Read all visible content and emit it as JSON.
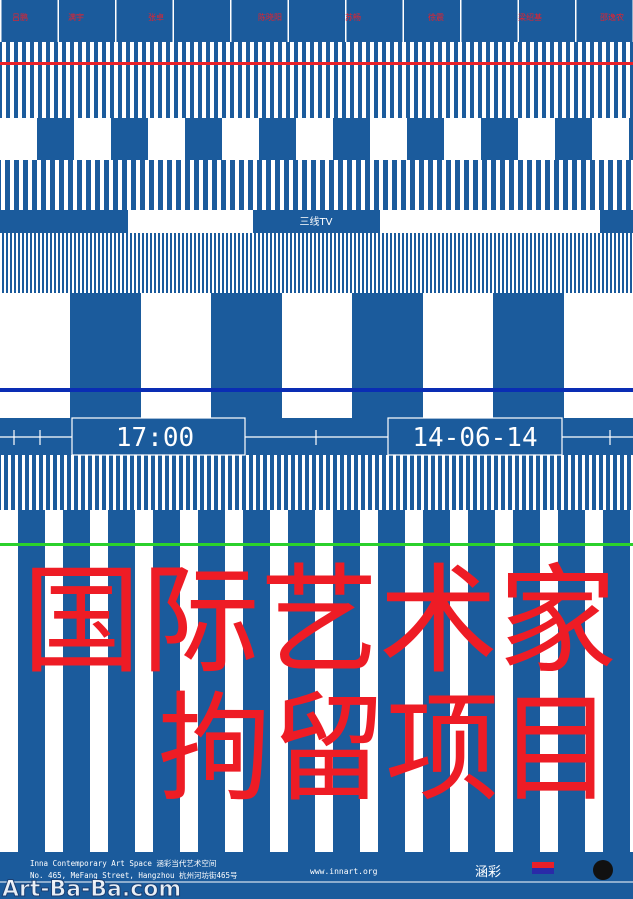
{
  "top_names": [
    "吕鹏",
    "满宇",
    "张卓",
    "陈晓阳",
    "苏畅",
    "徐震",
    "梁绍基",
    "邵逸农"
  ],
  "channel": "三线TV",
  "time": "17:00",
  "date": "14-06-14",
  "title_lines": [
    "国际艺术家",
    "拘留项目"
  ],
  "footer": {
    "venue": "Inna Contemporary Art Space 涵彩当代艺术空间",
    "address": "No. 465, MeFang Street, Hangzhou 杭州河坊街465号",
    "website": "www.innart.org",
    "logo": "涵彩"
  },
  "watermark": "Art-Ba-Ba.com"
}
